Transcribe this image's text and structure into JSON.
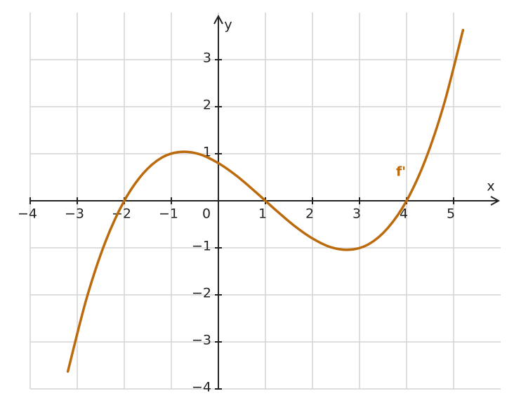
{
  "chart_data": {
    "type": "line",
    "x_label": "x",
    "y_label": "y",
    "annotation": "f'",
    "x": [
      -3.2,
      -2.8,
      -2.4,
      -2.0,
      -1.6,
      -1.2,
      -0.8,
      -0.4,
      0,
      0.4,
      0.8,
      1.2,
      1.6,
      2.0,
      2.4,
      2.8,
      3.2,
      3.6,
      4.0,
      4.4,
      4.8,
      5.2
    ],
    "series": [
      {
        "name": "f'",
        "color": "#bb6a0c",
        "values": [
          -3.63,
          -2.07,
          -0.87,
          0,
          0.58,
          0.92,
          1.04,
          0.99,
          0.8,
          0.52,
          0.18,
          -0.18,
          -0.52,
          -0.8,
          -0.99,
          -1.04,
          -0.92,
          -0.58,
          0,
          0.87,
          2.07,
          3.63
        ]
      }
    ],
    "xlim": [
      -4,
      6
    ],
    "ylim": [
      -4,
      4
    ],
    "xticks": [
      {
        "value": -4,
        "label": "−4"
      },
      {
        "value": -3,
        "label": "−3"
      },
      {
        "value": -2,
        "label": "−2"
      },
      {
        "value": -1,
        "label": "−1"
      },
      0,
      1,
      2,
      3,
      4,
      5
    ],
    "yticks": [
      {
        "value": -4,
        "label": "−4"
      },
      {
        "value": -3,
        "label": "−3"
      },
      {
        "value": -2,
        "label": "−2"
      },
      {
        "value": -1,
        "label": "−1"
      },
      1,
      2,
      3
    ],
    "grid": true
  }
}
